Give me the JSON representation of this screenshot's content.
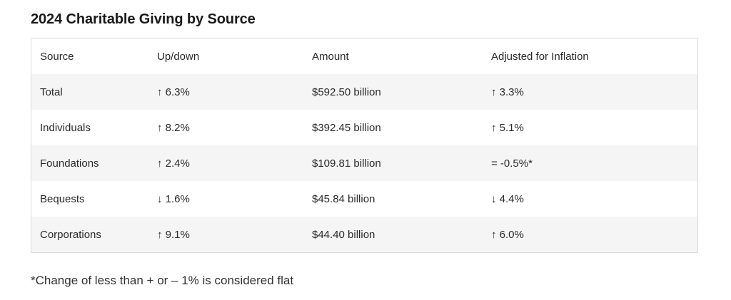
{
  "title": "2024 Charitable Giving by Source",
  "table": {
    "headers": [
      "Source",
      "Up/down",
      "Amount",
      "Adjusted for Inflation"
    ],
    "rows": [
      {
        "source": "Total",
        "change": "↑ 6.3%",
        "amount": "$592.50 billion",
        "adjusted": "↑ 3.3%"
      },
      {
        "source": "Individuals",
        "change": "↑ 8.2%",
        "amount": "$392.45 billion",
        "adjusted": "↑ 5.1%"
      },
      {
        "source": "Foundations",
        "change": "↑ 2.4%",
        "amount": "$109.81 billion",
        "adjusted": "= -0.5%*"
      },
      {
        "source": "Bequests",
        "change": "↓ 1.6%",
        "amount": "$45.84 billion",
        "adjusted": "↓ 4.4%"
      },
      {
        "source": "Corporations",
        "change": "↑ 9.1%",
        "amount": "$44.40 billion",
        "adjusted": "↑ 6.0%"
      }
    ]
  },
  "footnote": "*Change of less than + or – 1% is considered flat"
}
